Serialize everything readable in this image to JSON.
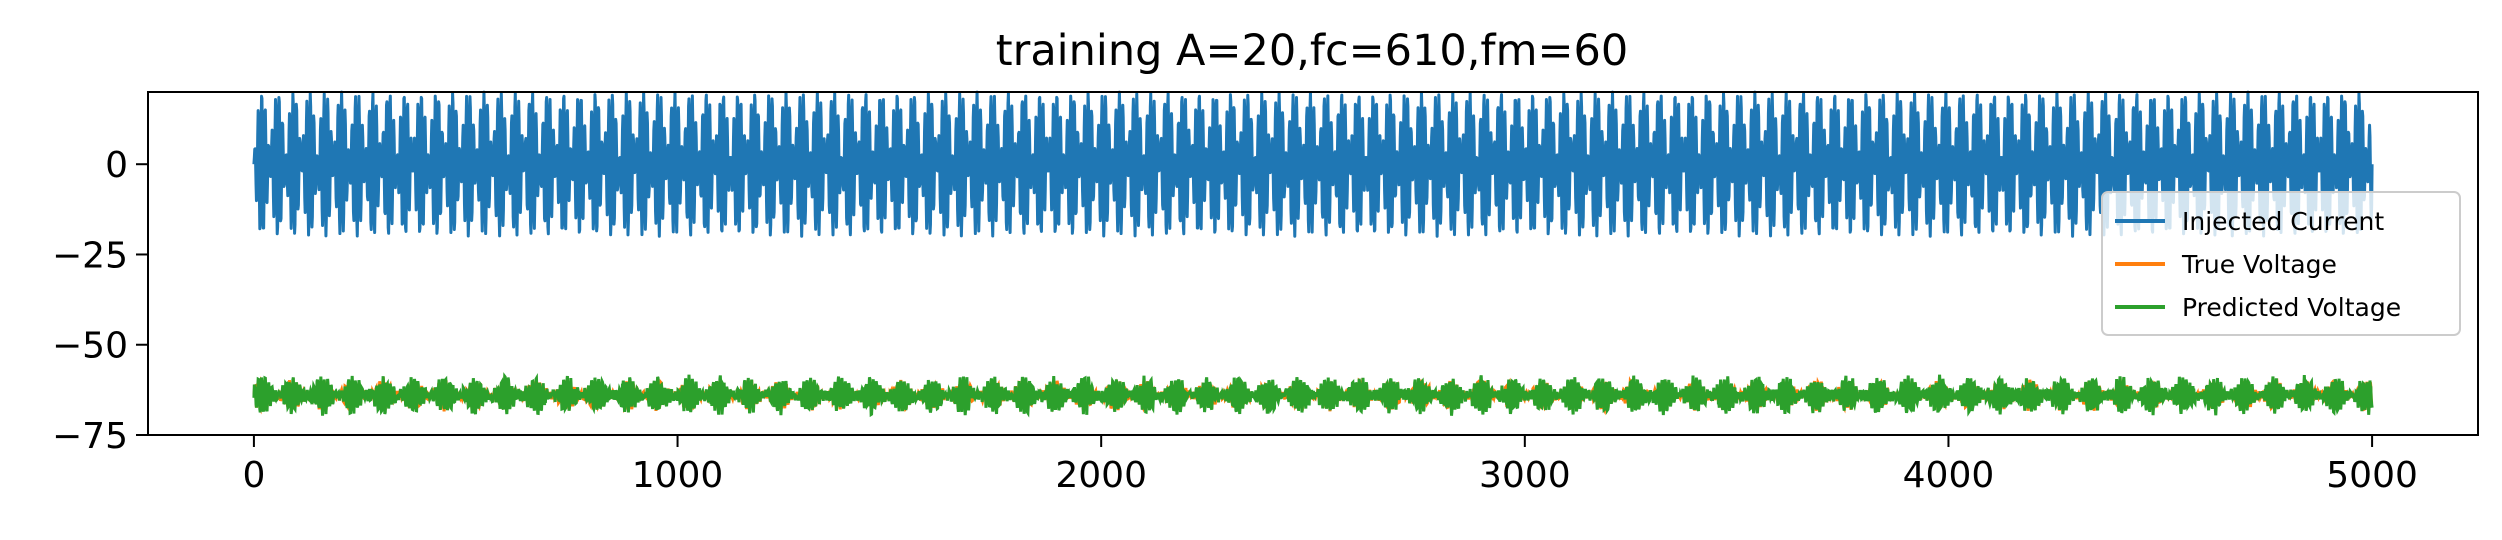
{
  "chart_data": {
    "type": "line",
    "title": "training A=20,fc=610,fm=60",
    "xlabel": "",
    "ylabel": "",
    "xlim": [
      -250,
      5250
    ],
    "ylim": [
      -75,
      20
    ],
    "xticks": [
      0,
      1000,
      2000,
      3000,
      4000,
      5000
    ],
    "xtick_labels": [
      "0",
      "1000",
      "2000",
      "3000",
      "4000",
      "5000"
    ],
    "yticks": [
      0,
      -25,
      -50,
      -75
    ],
    "ytick_labels": [
      "0",
      "−25",
      "−50",
      "−75"
    ],
    "grid": false,
    "legend_position": "center-right",
    "series": [
      {
        "name": "Injected Current",
        "color": "#1f77b4",
        "x_range": [
          0,
          5000
        ],
        "center": 0,
        "amplitude": 20,
        "carrier_freq": 610,
        "modulation_freq": 60,
        "envelope_minimum": 0.05,
        "description": "amplitude-modulated sinusoid oscillating roughly between -20 and +20"
      },
      {
        "name": "True Voltage",
        "color": "#ff7f0e",
        "x_range": [
          0,
          5000
        ],
        "center": -64,
        "approx_range": [
          -69,
          -59
        ]
      },
      {
        "name": "Predicted Voltage",
        "color": "#2ca02c",
        "x_range": [
          0,
          5000
        ],
        "center": -64,
        "approx_range": [
          -70,
          -58
        ]
      }
    ]
  }
}
